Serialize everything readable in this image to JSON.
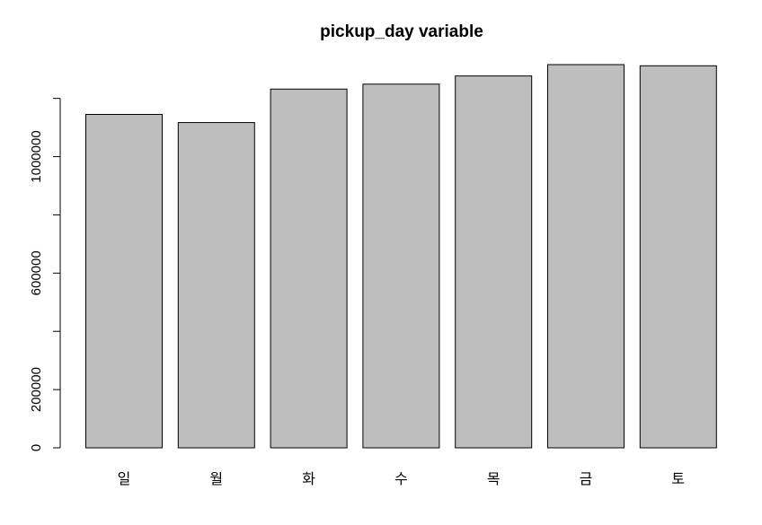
{
  "chart_data": {
    "type": "bar",
    "title": "pickup_day variable",
    "xlabel": "",
    "ylabel": "",
    "categories": [
      "일",
      "월",
      "화",
      "수",
      "목",
      "금",
      "토"
    ],
    "values": [
      1145000,
      1117000,
      1232000,
      1249000,
      1277000,
      1316000,
      1312000
    ],
    "ylim": [
      0,
      1316000
    ],
    "yticks": [
      0,
      200000,
      400000,
      600000,
      800000,
      1000000,
      1200000
    ],
    "ytick_labels": [
      "0",
      "200000",
      "",
      "600000",
      "",
      "1000000",
      ""
    ],
    "bar_color": "#bebebe",
    "border_color": "#000000",
    "grid": false,
    "legend": false
  }
}
